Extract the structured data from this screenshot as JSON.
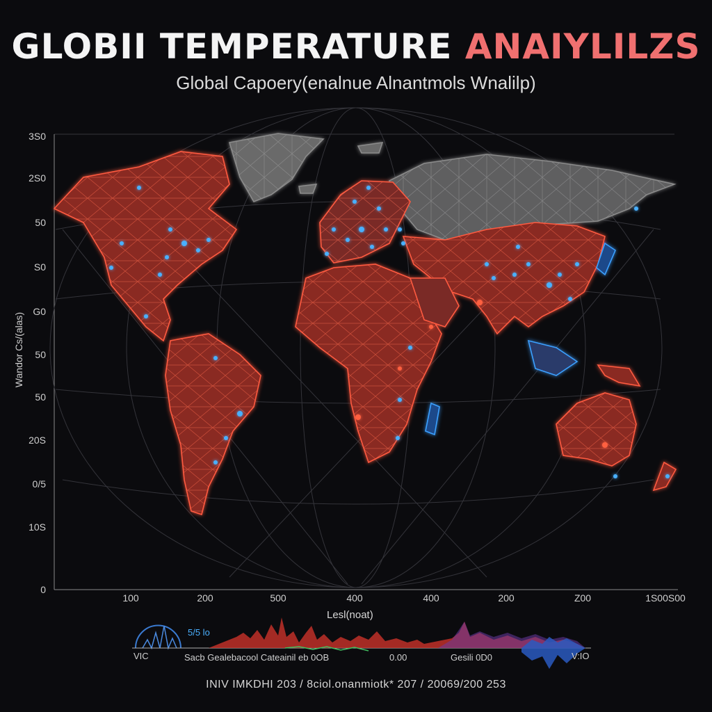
{
  "header": {
    "title_main": "GLOBII TEMPERATURE ",
    "title_accent": "ANAIYLILZS",
    "subtitle": "Global Capoery(enalnue Alnantmols Wnalilp)"
  },
  "axes": {
    "y_label": "Wandor Cs/(alas)",
    "y_ticks": [
      "3S0",
      "2S0",
      "50",
      "S0",
      "G0",
      "50",
      "50",
      "20S",
      "0/5",
      "10S",
      "0"
    ],
    "x_label": "Lesl(noat)",
    "x_ticks": [
      "100",
      "200",
      "500",
      "400",
      "400",
      "200",
      "Z00",
      "1S00S00"
    ]
  },
  "legend": {
    "left_label": "VIC",
    "right_label": "V:IO",
    "scale_label": "5/5 lo",
    "series_text": "Sacb Gealebacool Cateainil eb 0OB",
    "mid_value": "0.00",
    "end_text": "Gesili 0D0"
  },
  "footer": {
    "text": "INIV IMKDHI 203 / 8ciol.onanmiotk* 207 / 20069/200 253"
  },
  "colors": {
    "background": "#0b0b0e",
    "hot": "#e8402e",
    "cool": "#3aa0ff",
    "land_grey": "#6c6c6c",
    "grid": "#3a3a40"
  },
  "map": {
    "regions": [
      "north-america",
      "greenland",
      "south-america",
      "europe",
      "africa",
      "russia-asia",
      "india",
      "southeast-asia",
      "japan",
      "australia",
      "new-zealand",
      "madagascar",
      "iceland",
      "indonesia"
    ]
  }
}
